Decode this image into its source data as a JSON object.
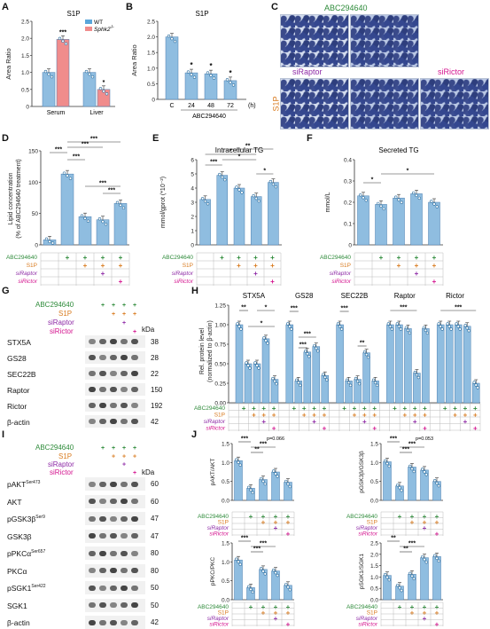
{
  "panels": {
    "A": "A",
    "B": "B",
    "C": "C",
    "D": "D",
    "E": "E",
    "F": "F",
    "G": "G",
    "H": "H",
    "I": "I",
    "J": "J"
  },
  "colors": {
    "bar_blue": "#8fbde0",
    "bar_red": "#f08c8c",
    "wt_blue": "#5aa6da",
    "green": "#2e8b3a",
    "orange": "#d97b1f",
    "purple": "#8e2aa6",
    "magenta": "#d4148f"
  },
  "panel_a": {
    "title": "S1P",
    "ylabel": "Area Ratio",
    "legend": [
      "WT",
      "Sphk2"
    ],
    "legend_sup": "-/-",
    "chart_data": {
      "type": "bar",
      "categories": [
        "Serum",
        "Liver"
      ],
      "series": [
        {
          "name": "WT",
          "values": [
            1.0,
            1.0
          ]
        },
        {
          "name": "Sphk2-/-",
          "values": [
            1.97,
            0.5
          ]
        }
      ],
      "ylim": [
        0,
        2.5
      ],
      "yticks": [
        "0",
        "0.5",
        "1.0",
        "1.5",
        "2.0",
        "2.5"
      ],
      "significance": [
        "***",
        "*"
      ]
    }
  },
  "panel_b": {
    "title": "S1P",
    "ylabel": "Area Ratio",
    "xlabel": "ABC294640",
    "unit": "(h)",
    "chart_data": {
      "type": "bar",
      "categories": [
        "C",
        "24",
        "48",
        "72"
      ],
      "values": [
        2.0,
        0.85,
        0.82,
        0.6
      ],
      "ylim": [
        0,
        2.5
      ],
      "yticks": [
        "0",
        "0.5",
        "1.0",
        "1.5",
        "2.0",
        "2.5"
      ],
      "significance": [
        "",
        "*",
        "*",
        "*"
      ]
    }
  },
  "panel_c": {
    "top_label": "ABC294640",
    "si_raptor": "siRaptor",
    "si_rictor": "siRictor",
    "side_label": "S1P"
  },
  "panel_d": {
    "ylabel": "Lipid concentration",
    "ylabel2": "(% of ABC294640 treatment)",
    "chart_data": {
      "type": "bar",
      "categories": [
        "1",
        "2",
        "3",
        "4",
        "5"
      ],
      "values": [
        8,
        113,
        45,
        40,
        66
      ],
      "ylim": [
        0,
        150
      ],
      "yticks": [
        "0",
        "50",
        "100",
        "150"
      ],
      "significance": [
        "***",
        "***",
        "***",
        "***",
        "***",
        "***"
      ]
    }
  },
  "panel_e": {
    "title": "Intracellular TG",
    "ylabel": "mmol/gprot (*10⁻²)",
    "chart_data": {
      "type": "bar",
      "categories": [
        "1",
        "2",
        "3",
        "4",
        "5"
      ],
      "values": [
        3.2,
        4.9,
        4.0,
        3.4,
        4.4
      ],
      "ylim": [
        0,
        6
      ],
      "yticks": [
        "0",
        "1",
        "2",
        "3",
        "4",
        "5",
        "6"
      ],
      "significance": [
        "***",
        "*",
        "*",
        "**",
        "**"
      ]
    }
  },
  "panel_f": {
    "title": "Secreted TG",
    "ylabel": "mmol/L",
    "chart_data": {
      "type": "bar",
      "categories": [
        "1",
        "2",
        "3",
        "4",
        "5"
      ],
      "values": [
        0.23,
        0.19,
        0.22,
        0.24,
        0.2
      ],
      "ylim": [
        0,
        0.4
      ],
      "yticks": [
        "0",
        "0.1",
        "0.2",
        "0.3",
        "0.4"
      ],
      "significance": [
        "*",
        "*"
      ]
    }
  },
  "treatment": {
    "abc": "ABC294640",
    "s1p": "S1P",
    "si_raptor": "siRaptor",
    "si_rictor": "siRictor",
    "plus": "+"
  },
  "blot_g": {
    "proteins": [
      "STX5A",
      "GS28",
      "SEC22B",
      "Raptor",
      "Rictor",
      "β-actin"
    ],
    "kda": [
      "38",
      "28",
      "22",
      "150",
      "192",
      "42"
    ],
    "kda_label": "kDa"
  },
  "panel_h": {
    "ylabel": "Rel. protein level",
    "ylabel2": "(normalized to β-actin)",
    "groups": [
      "STX5A",
      "GS28",
      "SEC22B",
      "Raptor",
      "Rictor"
    ],
    "chart_data": {
      "type": "bar",
      "categories": [
        "STX5A",
        "GS28",
        "SEC22B",
        "Raptor",
        "Rictor"
      ],
      "series": [
        {
          "name": "1",
          "values": [
            1.0,
            1.0,
            1.0,
            1.0,
            1.0
          ]
        },
        {
          "name": "2",
          "values": [
            0.5,
            0.28,
            0.28,
            1.0,
            1.0
          ]
        },
        {
          "name": "3",
          "values": [
            0.5,
            0.65,
            0.3,
            0.95,
            1.0
          ]
        },
        {
          "name": "4",
          "values": [
            0.82,
            0.72,
            0.64,
            0.38,
            0.98
          ]
        },
        {
          "name": "5",
          "values": [
            0.3,
            0.35,
            0.28,
            0.95,
            0.25
          ]
        }
      ],
      "ylim": [
        0,
        1.25
      ],
      "yticks": [
        "0.00",
        "0.25",
        "0.50",
        "0.75",
        "1.00",
        "1.25"
      ],
      "significance": [
        "**",
        "*",
        "*",
        "***",
        "***",
        "***",
        "***",
        "**",
        "***",
        "***"
      ]
    }
  },
  "blot_i": {
    "proteins": [
      "pAKT",
      "AKT",
      "pGSK3β",
      "GSK3β",
      "pPKCα",
      "PKCα",
      "pSGK1",
      "SGK1",
      "β-actin"
    ],
    "sups": [
      "Ser473",
      "",
      "Ser9",
      "",
      "Ser657",
      "",
      "Ser422",
      "",
      ""
    ],
    "kda": [
      "60",
      "60",
      "47",
      "47",
      "80",
      "80",
      "50",
      "50",
      "42"
    ],
    "kda_label": "kDa"
  },
  "panel_j": {
    "charts": [
      {
        "ylabel": "pAKT/AKT",
        "values": [
          1.05,
          0.32,
          0.55,
          0.75,
          0.48
        ],
        "ylim": [
          0,
          1.5
        ],
        "yticks": [
          "0.0",
          "0.5",
          "1.0",
          "1.5"
        ],
        "pval": "p=0.066",
        "significance": [
          "***",
          "**",
          "***"
        ]
      },
      {
        "ylabel": "pGSK3β/GSK3β",
        "values": [
          1.02,
          0.38,
          0.88,
          0.8,
          0.5
        ],
        "ylim": [
          0,
          1.5
        ],
        "yticks": [
          "0.0",
          "0.5",
          "1.0",
          "1.5"
        ],
        "pval": "p=0.053",
        "significance": [
          "***",
          "***",
          "***"
        ]
      },
      {
        "ylabel": "pPKC/PKC",
        "values": [
          1.05,
          0.32,
          0.8,
          0.76,
          0.38
        ],
        "ylim": [
          0,
          1.5
        ],
        "yticks": [
          "0.0",
          "0.5",
          "1.0",
          "1.5"
        ],
        "pval": "",
        "significance": [
          "***",
          "***",
          "***"
        ]
      },
      {
        "ylabel": "pSGK1/SGK1",
        "values": [
          1.07,
          0.6,
          1.12,
          1.85,
          1.9
        ],
        "ylim": [
          0,
          2.5
        ],
        "yticks": [
          "0.0",
          "0.5",
          "1.0",
          "1.5",
          "2.0",
          "2.5"
        ],
        "pval": "",
        "significance": [
          "**",
          "**",
          "***",
          "***",
          "***"
        ]
      }
    ]
  }
}
